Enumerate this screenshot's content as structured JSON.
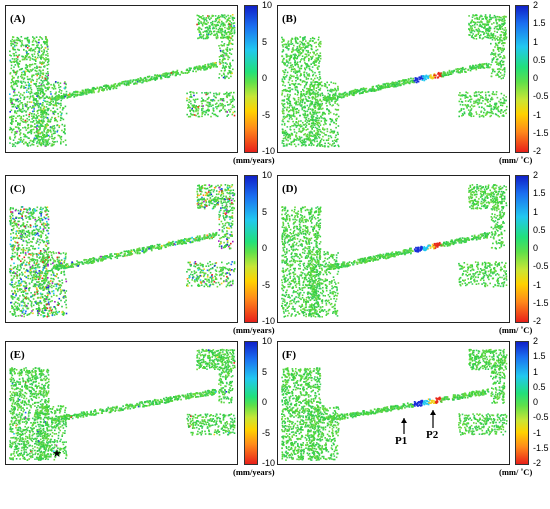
{
  "panels": [
    {
      "label": "(A)",
      "type": "velocity"
    },
    {
      "label": "(B)",
      "type": "thermal"
    },
    {
      "label": "(C)",
      "type": "velocity"
    },
    {
      "label": "(D)",
      "type": "thermal"
    },
    {
      "label": "(E)",
      "type": "velocity"
    },
    {
      "label": "(F)",
      "type": "thermal"
    }
  ],
  "colorbars": {
    "velocity": {
      "ticks": [
        "10",
        "5",
        "0",
        "-5",
        "-10"
      ],
      "unit": "(mm/years)"
    },
    "thermal": {
      "ticks": [
        "2",
        "1.5",
        "1",
        "0.5",
        "0",
        "-0.5",
        "-1",
        "-1.5",
        "-2"
      ],
      "unit": "(mm/ ˚C)"
    }
  },
  "annotations": {
    "p1": "P1",
    "p2": "P2",
    "star": "★"
  },
  "colors": {
    "green": "#38d23c",
    "blue": "#1a2fd8",
    "red": "#e8281a",
    "yellow": "#f0d020"
  }
}
